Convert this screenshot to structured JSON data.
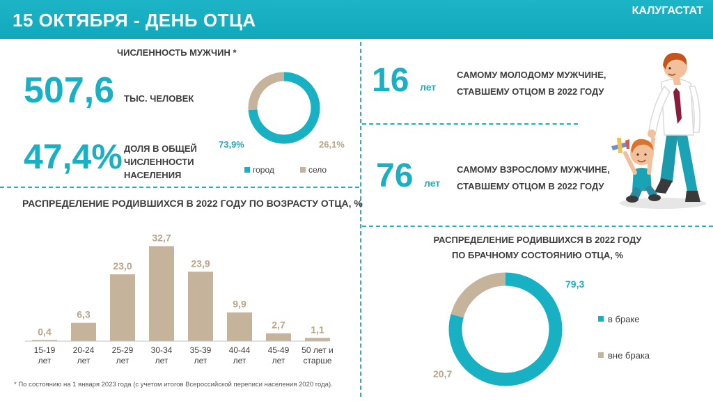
{
  "header": {
    "title": "15 ОКТЯБРЯ - ДЕНЬ ОТЦА",
    "org": "КАЛУГАСТАТ"
  },
  "population": {
    "section_title": "ЧИСЛЕННОСТЬ МУЖЧИН *",
    "value_int": "507",
    "value_dec": ",6",
    "value_label": "ТЫС. ЧЕЛОВЕК",
    "share_int": "47",
    "share_dec": ",4%",
    "share_label_1": "ДОЛЯ В ОБЩЕЙ",
    "share_label_2": "ЧИСЛЕННОСТИ",
    "share_label_3": "НАСЕЛЕНИЯ"
  },
  "youngest": {
    "number": "16",
    "unit": "лет",
    "line1": "САМОМУ МОЛОДОМУ МУЖЧИНЕ,",
    "line2": "СТАВШЕМУ ОТЦОМ В 2022 ГОДУ"
  },
  "oldest": {
    "number": "76",
    "unit": "лет",
    "line1": "САМОМУ ВЗРОСЛОМУ МУЖЧИНЕ,",
    "line2": "СТАВШЕМУ ОТЦОМ В 2022 ГОДУ"
  },
  "footnote": "* По состоянию на 1 января 2023 года (с учетом итогов Всероссийской переписи населения 2020 года).",
  "colors": {
    "teal": "#18b0c3",
    "tan": "#c5b49b",
    "tan_text": "#b9a588"
  },
  "chart_data": [
    {
      "type": "pie",
      "title": "",
      "categories": [
        "город",
        "село"
      ],
      "values": [
        73.9,
        26.1
      ],
      "value_labels": [
        "73,9%",
        "26,1%"
      ],
      "legend": "bottom",
      "colors": [
        "#18b0c3",
        "#c5b49b"
      ]
    },
    {
      "type": "bar",
      "title": "РАСПРЕДЕЛЕНИЕ РОДИВШИХСЯ В 2022 ГОДУ ПО ВОЗРАСТУ ОТЦА, %",
      "categories": [
        [
          "15-19",
          "лет"
        ],
        [
          "20-24",
          "лет"
        ],
        [
          "25-29",
          "лет"
        ],
        [
          "30-34",
          "лет"
        ],
        [
          "35-39",
          "лет"
        ],
        [
          "40-44",
          "лет"
        ],
        [
          "45-49",
          "лет"
        ],
        [
          "50 лет и",
          "старше"
        ]
      ],
      "values": [
        0.4,
        6.3,
        23.0,
        32.7,
        23.9,
        9.9,
        2.7,
        1.1
      ],
      "value_labels": [
        "0,4",
        "6,3",
        "23,0",
        "32,7",
        "23,9",
        "9,9",
        "2,7",
        "1,1"
      ],
      "ylim": [
        0,
        35
      ],
      "color": "#c5b49b"
    },
    {
      "type": "pie",
      "title_line1": "РАСПРЕДЕЛЕНИЕ РОДИВШИХСЯ В 2022 ГОДУ",
      "title_line2": "ПО БРАЧНОМУ СОСТОЯНИЮ ОТЦА, %",
      "categories": [
        "в браке",
        "вне брака"
      ],
      "values": [
        79.3,
        20.7
      ],
      "value_labels": [
        "79,3",
        "20,7"
      ],
      "legend": "right",
      "colors": [
        "#18b0c3",
        "#c5b49b"
      ]
    }
  ]
}
